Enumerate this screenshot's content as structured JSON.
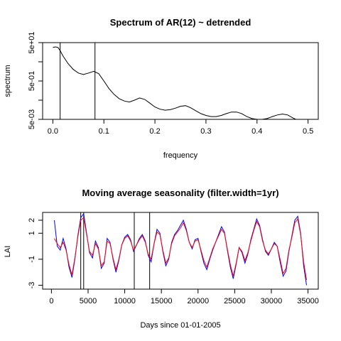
{
  "chart_data": [
    {
      "type": "line",
      "title": "Spectrum of AR(12) ~ detrended",
      "xlabel": "frequency",
      "ylabel": "spectrum",
      "xlim": [
        -0.02,
        0.52
      ],
      "ylim": [
        0.005,
        50
      ],
      "y_scale": "log",
      "x_ticks": [
        "0.0",
        "0.1",
        "0.2",
        "0.3",
        "0.4",
        "0.5"
      ],
      "x_tick_values": [
        0,
        0.1,
        0.2,
        0.3,
        0.4,
        0.5
      ],
      "y_ticks": [
        "5e-03",
        "5e-01",
        "5e+01"
      ],
      "y_tick_values": [
        0.005,
        0.5,
        50
      ],
      "y_minor_tick_values": [
        0.05,
        5
      ],
      "vertical_lines": [
        0.0143,
        0.0826
      ],
      "series": [
        {
          "color": "#000000",
          "x": [
            0.0,
            0.005,
            0.01,
            0.015,
            0.02,
            0.03,
            0.04,
            0.05,
            0.06,
            0.07,
            0.08,
            0.09,
            0.1,
            0.11,
            0.12,
            0.13,
            0.14,
            0.15,
            0.16,
            0.17,
            0.18,
            0.19,
            0.2,
            0.21,
            0.22,
            0.23,
            0.24,
            0.25,
            0.26,
            0.27,
            0.28,
            0.29,
            0.3,
            0.31,
            0.32,
            0.33,
            0.34,
            0.35,
            0.36,
            0.37,
            0.38,
            0.39,
            0.4,
            0.41,
            0.42,
            0.43,
            0.44,
            0.45,
            0.46,
            0.47,
            0.48,
            0.49,
            0.5
          ],
          "y": [
            28,
            30,
            28,
            18,
            10,
            4,
            2,
            1.3,
            1.1,
            1.3,
            1.6,
            1.2,
            0.5,
            0.2,
            0.1,
            0.06,
            0.045,
            0.04,
            0.05,
            0.065,
            0.055,
            0.035,
            0.022,
            0.017,
            0.015,
            0.016,
            0.019,
            0.024,
            0.026,
            0.02,
            0.014,
            0.01,
            0.008,
            0.007,
            0.007,
            0.008,
            0.01,
            0.012,
            0.012,
            0.01,
            0.007,
            0.0055,
            0.005,
            0.005,
            0.0055,
            0.007,
            0.0085,
            0.0095,
            0.0085,
            0.006,
            0.0045,
            0.004,
            0.0038
          ]
        }
      ]
    },
    {
      "type": "line",
      "title": "Moving average seasonality (filter.width=1yr)",
      "xlabel": "Days since 01-01-2005",
      "ylabel": "LAI",
      "xlim": [
        -1200,
        36400
      ],
      "ylim": [
        -3.3,
        2.6
      ],
      "x_ticks": [
        "0",
        "5000",
        "10000",
        "15000",
        "20000",
        "25000",
        "30000",
        "35000"
      ],
      "x_tick_values": [
        0,
        5000,
        10000,
        15000,
        20000,
        25000,
        30000,
        35000
      ],
      "y_ticks": [
        "-3",
        "-1",
        "1",
        "2"
      ],
      "y_tick_values": [
        -3,
        -1,
        1,
        2
      ],
      "vertical_lines": [
        4000,
        4400,
        11300,
        13400
      ],
      "series": [
        {
          "name": "",
          "color": "#0000ff",
          "x": [
            400,
            800,
            1200,
            1600,
            2000,
            2400,
            2800,
            3200,
            3600,
            4000,
            4400,
            4800,
            5200,
            5600,
            6000,
            6400,
            6800,
            7200,
            7600,
            8000,
            8400,
            8800,
            9200,
            9600,
            10000,
            10400,
            10800,
            11200,
            11600,
            12000,
            12400,
            12800,
            13200,
            13600,
            14000,
            14400,
            14800,
            15200,
            15600,
            16000,
            16400,
            16800,
            17200,
            17600,
            18000,
            18400,
            18800,
            19200,
            19600,
            20000,
            20400,
            20800,
            21200,
            21600,
            22000,
            22400,
            22800,
            23200,
            23600,
            24000,
            24400,
            24800,
            25200,
            25600,
            26000,
            26400,
            26800,
            27200,
            27600,
            28000,
            28400,
            28800,
            29200,
            29600,
            30000,
            30400,
            30800,
            31200,
            31600,
            32000,
            32400,
            32800,
            33200,
            33600,
            34000,
            34400,
            34800
          ],
          "y": [
            2.0,
            0.0,
            -0.3,
            0.6,
            -0.2,
            -1.6,
            -2.4,
            -1.0,
            0.8,
            2.2,
            2.5,
            1.0,
            -0.5,
            -0.9,
            0.4,
            -0.1,
            -1.7,
            -1.3,
            0.6,
            0.3,
            -1.0,
            -2.0,
            -1.1,
            0.1,
            0.7,
            0.9,
            0.5,
            -0.4,
            0.1,
            0.6,
            0.9,
            0.4,
            -0.7,
            -1.2,
            0.2,
            1.3,
            1.0,
            -0.4,
            -1.5,
            -1.0,
            0.3,
            0.9,
            1.2,
            1.6,
            2.0,
            1.3,
            0.3,
            -0.2,
            0.5,
            0.6,
            -0.4,
            -1.3,
            -1.8,
            -1.0,
            -0.3,
            0.3,
            0.9,
            1.5,
            1.1,
            -0.3,
            -1.6,
            -2.5,
            -1.4,
            -0.1,
            -0.5,
            -1.3,
            -0.6,
            0.5,
            1.3,
            2.1,
            1.6,
            0.5,
            -0.4,
            -0.7,
            -0.2,
            0.3,
            0.0,
            -1.2,
            -2.3,
            -1.9,
            -0.4,
            0.8,
            2.0,
            2.3,
            1.0,
            -1.5,
            -3.0
          ]
        },
        {
          "name": "",
          "color": "#ff0000",
          "x": [
            400,
            800,
            1200,
            1600,
            2000,
            2400,
            2800,
            3200,
            3600,
            4000,
            4400,
            4800,
            5200,
            5600,
            6000,
            6400,
            6800,
            7200,
            7600,
            8000,
            8400,
            8800,
            9200,
            9600,
            10000,
            10400,
            10800,
            11200,
            11600,
            12000,
            12400,
            12800,
            13200,
            13600,
            14000,
            14400,
            14800,
            15200,
            15600,
            16000,
            16400,
            16800,
            17200,
            17600,
            18000,
            18400,
            18800,
            19200,
            19600,
            20000,
            20400,
            20800,
            21200,
            21600,
            22000,
            22400,
            22800,
            23200,
            23600,
            24000,
            24400,
            24800,
            25200,
            25600,
            26000,
            26400,
            26800,
            27200,
            27600,
            28000,
            28400,
            28800,
            29200,
            29600,
            30000,
            30400,
            30800,
            31200,
            31600,
            32000,
            32400,
            32800,
            33200,
            33600,
            34000,
            34400,
            34800
          ],
          "y": [
            0.6,
            0.2,
            -0.1,
            0.3,
            -0.3,
            -1.4,
            -2.2,
            -0.9,
            0.7,
            2.0,
            2.2,
            0.9,
            -0.4,
            -0.7,
            0.2,
            -0.2,
            -1.5,
            -1.2,
            0.4,
            0.2,
            -0.9,
            -1.8,
            -1.0,
            0.1,
            0.6,
            0.8,
            0.4,
            -0.3,
            0.1,
            0.5,
            0.8,
            0.3,
            -0.6,
            -1.0,
            0.2,
            1.1,
            0.9,
            -0.3,
            -1.3,
            -0.9,
            0.2,
            0.8,
            1.1,
            1.4,
            1.8,
            1.2,
            0.3,
            -0.1,
            0.4,
            0.5,
            -0.3,
            -1.1,
            -1.6,
            -0.9,
            -0.2,
            0.3,
            0.8,
            1.3,
            1.0,
            -0.2,
            -1.4,
            -2.3,
            -1.3,
            -0.1,
            -0.4,
            -1.1,
            -0.5,
            0.4,
            1.2,
            1.9,
            1.5,
            0.4,
            -0.3,
            -0.6,
            -0.2,
            0.2,
            0.0,
            -1.0,
            -2.1,
            -1.7,
            -0.3,
            0.7,
            1.8,
            2.1,
            0.9,
            -1.2,
            -2.6
          ]
        }
      ]
    }
  ]
}
